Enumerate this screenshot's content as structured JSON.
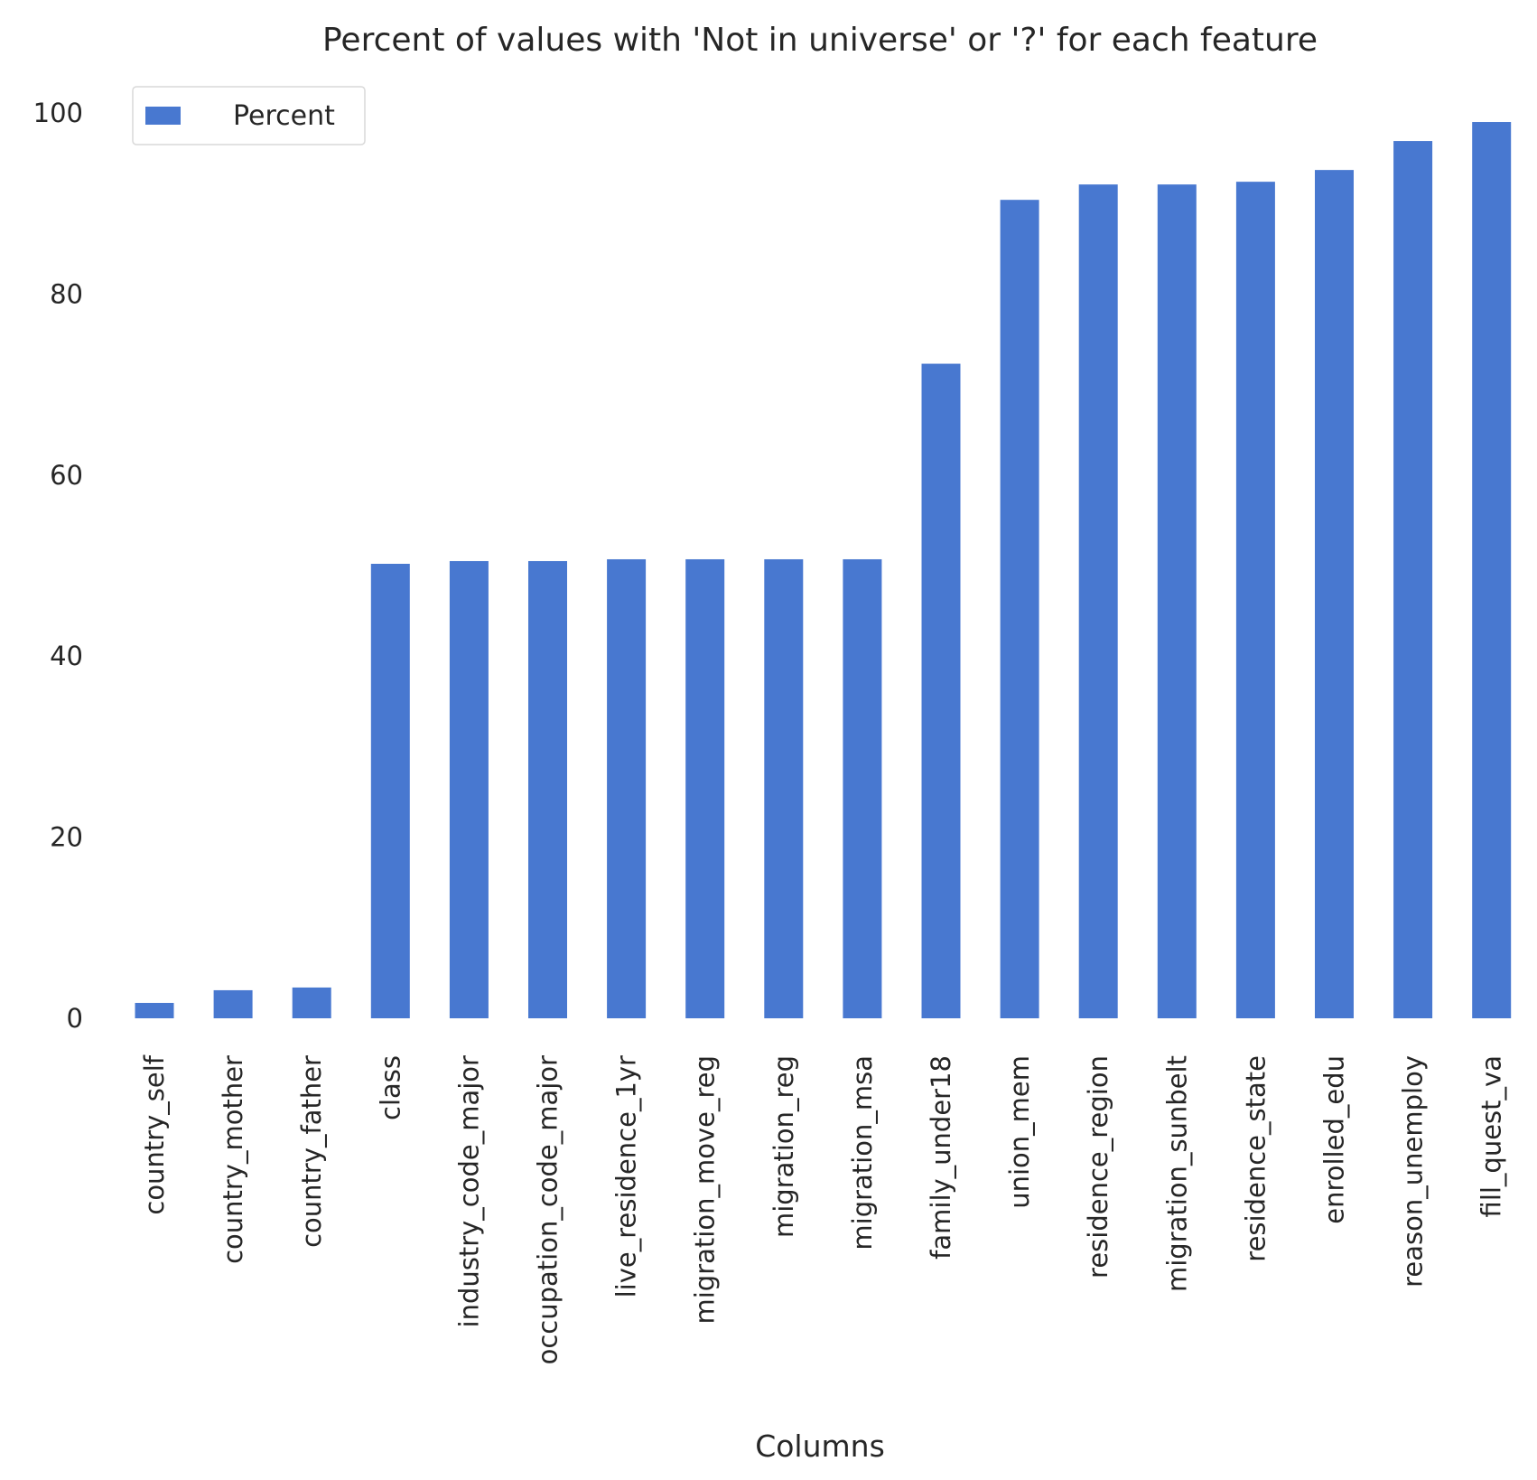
{
  "chart_data": {
    "type": "bar",
    "title": "Percent of values with 'Not in universe' or '?' for each feature",
    "xlabel": "Columns",
    "ylabel": "",
    "ylim": [
      0,
      100
    ],
    "yticks": [
      0,
      20,
      40,
      60,
      80,
      100
    ],
    "grid": false,
    "legend_position": "top-left",
    "bar_color": "#4878d0",
    "categories": [
      "country_self",
      "country_mother",
      "country_father",
      "class",
      "industry_code_major",
      "occupation_code_major",
      "live_residence_1yr",
      "migration_move_reg",
      "migration_reg",
      "migration_msa",
      "family_under18",
      "union_mem",
      "residence_region",
      "migration_sunbelt",
      "residence_state",
      "enrolled_edu",
      "reason_unemploy",
      "fill_quest_va"
    ],
    "series": [
      {
        "name": "Percent",
        "values": [
          1.7,
          3.1,
          3.4,
          50.2,
          50.5,
          50.5,
          50.7,
          50.7,
          50.7,
          50.7,
          72.3,
          90.4,
          92.1,
          92.1,
          92.4,
          93.7,
          96.9,
          99.0
        ]
      }
    ]
  }
}
